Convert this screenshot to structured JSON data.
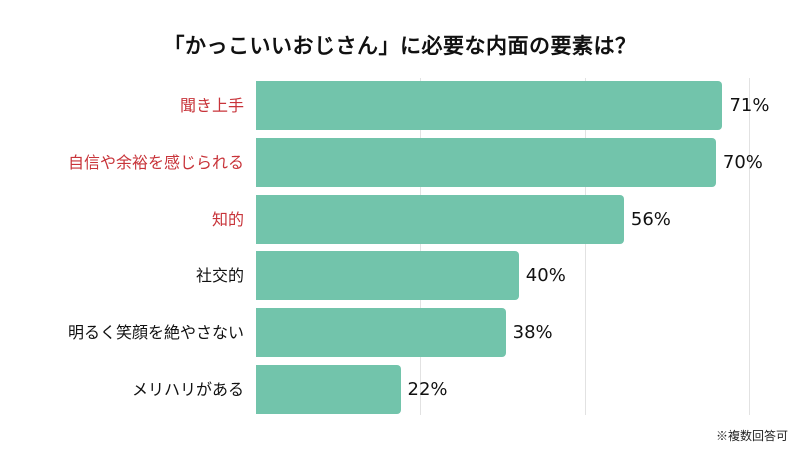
{
  "title": "「かっこいいおじさん」に必要な内面の要素は？",
  "note": "※複数回答可",
  "colors": {
    "bar": "#72c4ab",
    "highlight_label": "#c8343a",
    "normal_label": "#111111",
    "grid": "#e2e2e2"
  },
  "chart_data": {
    "type": "bar",
    "orientation": "horizontal",
    "title": "「かっこいいおじさん」に必要な内面の要素は？",
    "categories": [
      "聞き上手",
      "自信や余裕を感じられる",
      "知的",
      "社交的",
      "明るく笑顔を絶やさない",
      "メリハリがある"
    ],
    "values": [
      71,
      70,
      56,
      40,
      38,
      22
    ],
    "value_labels": [
      "71%",
      "70%",
      "56%",
      "40%",
      "38%",
      "22%"
    ],
    "highlighted": [
      true,
      true,
      true,
      false,
      false,
      false
    ],
    "xlabel": "",
    "ylabel": "",
    "xlim": [
      0,
      80
    ],
    "gridlines": [
      25,
      50,
      75
    ],
    "grid": true,
    "legend": null,
    "annotation": "※複数回答可"
  }
}
